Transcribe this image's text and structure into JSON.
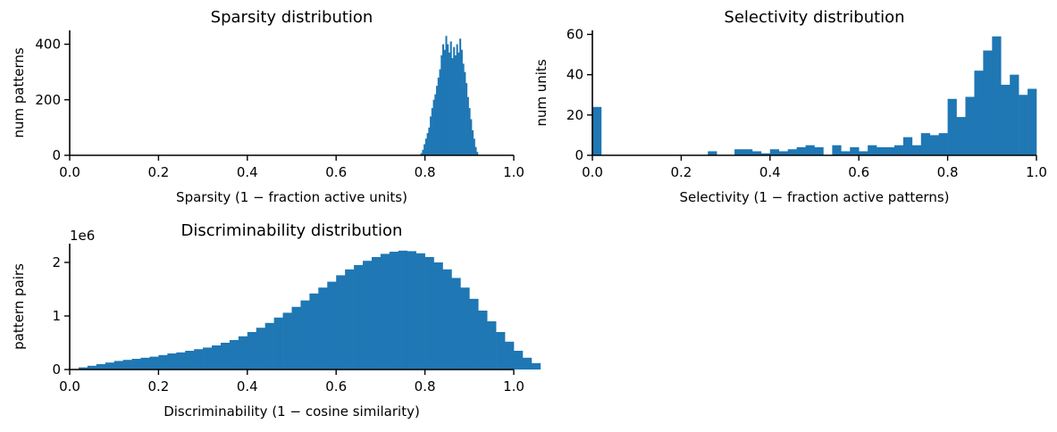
{
  "chart_data": [
    {
      "id": "sparsity",
      "type": "bar",
      "title": "Sparsity distribution",
      "xlabel": "Sparsity (1 −  fraction active units)",
      "ylabel": "num patterns",
      "xlim": [
        0,
        1
      ],
      "ylim": [
        0,
        450
      ],
      "xticks": [
        "0.0",
        "0.2",
        "0.4",
        "0.6",
        "0.8",
        "1.0"
      ],
      "xtick_values": [
        0,
        0.2,
        0.4,
        0.6,
        0.8,
        1.0
      ],
      "yticks": [
        "0",
        "200",
        "400"
      ],
      "ytick_values": [
        0,
        200,
        400
      ],
      "y_offset_text": "",
      "bin_start": 0.79,
      "bin_width": 0.0035,
      "values": [
        8,
        20,
        40,
        60,
        80,
        100,
        140,
        170,
        200,
        220,
        250,
        280,
        310,
        360,
        400,
        380,
        430,
        400,
        370,
        410,
        350,
        390,
        360,
        400,
        370,
        420,
        380,
        330,
        300,
        260,
        210,
        170,
        130,
        90,
        60,
        30,
        12
      ]
    },
    {
      "id": "selectivity",
      "type": "bar",
      "title": "Selectivity distribution",
      "xlabel": "Selectivity (1 −  fraction active patterns)",
      "ylabel": "num units",
      "xlim": [
        0,
        1
      ],
      "ylim": [
        0,
        62
      ],
      "xticks": [
        "0.0",
        "0.2",
        "0.4",
        "0.6",
        "0.8",
        "1.0"
      ],
      "xtick_values": [
        0,
        0.2,
        0.4,
        0.6,
        0.8,
        1.0
      ],
      "yticks": [
        "0",
        "20",
        "40",
        "60"
      ],
      "ytick_values": [
        0,
        20,
        40,
        60
      ],
      "y_offset_text": "",
      "bin_start": 0,
      "bin_width": 0.02,
      "values": [
        24,
        0,
        0,
        0,
        0,
        0,
        0,
        0,
        0,
        0,
        0,
        0,
        0,
        2,
        0,
        0,
        3,
        3,
        2,
        1,
        3,
        2,
        3,
        4,
        5,
        4,
        0,
        5,
        2,
        4,
        2,
        5,
        4,
        4,
        5,
        9,
        5,
        11,
        10,
        11,
        28,
        19,
        29,
        42,
        52,
        59,
        35,
        40,
        30,
        33
      ]
    },
    {
      "id": "discriminability",
      "type": "bar",
      "title": "Discriminability distribution",
      "xlabel": "Discriminability (1 −  cosine similarity)",
      "ylabel": "pattern pairs",
      "xlim": [
        0,
        1
      ],
      "ylim": [
        0,
        2.35
      ],
      "xticks": [
        "0.0",
        "0.2",
        "0.4",
        "0.6",
        "0.8",
        "1.0"
      ],
      "xtick_values": [
        0,
        0.2,
        0.4,
        0.6,
        0.8,
        1.0
      ],
      "yticks": [
        "0",
        "1",
        "2"
      ],
      "ytick_values": [
        0,
        1,
        2
      ],
      "y_offset_text": "1e6",
      "bin_start": 0,
      "bin_width": 0.02,
      "values": [
        0.01,
        0.04,
        0.07,
        0.1,
        0.13,
        0.16,
        0.18,
        0.2,
        0.22,
        0.24,
        0.27,
        0.3,
        0.32,
        0.35,
        0.38,
        0.41,
        0.45,
        0.5,
        0.55,
        0.62,
        0.7,
        0.78,
        0.87,
        0.97,
        1.06,
        1.17,
        1.29,
        1.42,
        1.53,
        1.64,
        1.76,
        1.87,
        1.95,
        2.03,
        2.1,
        2.16,
        2.2,
        2.22,
        2.21,
        2.17,
        2.1,
        2.0,
        1.87,
        1.71,
        1.53,
        1.32,
        1.1,
        0.9,
        0.7,
        0.52,
        0.35,
        0.22,
        0.12
      ]
    }
  ],
  "colors": {
    "bar": "#1f77b4",
    "axis": "#000000"
  }
}
